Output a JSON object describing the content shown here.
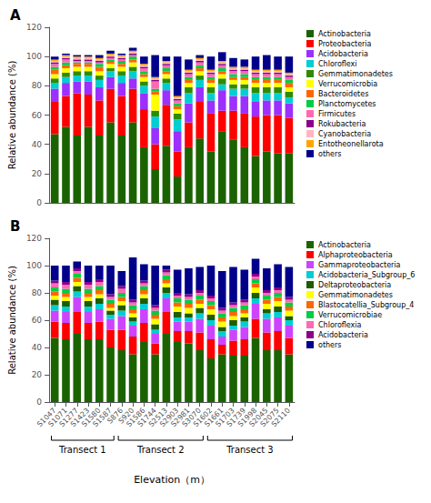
{
  "chart_data": [
    {
      "type": "bar",
      "title": "A",
      "stacked": true,
      "categories": [
        "S1047",
        "S1071",
        "S1277",
        "S1423",
        "S1580",
        "S1587",
        "S876",
        "S920",
        "S1586",
        "S1744",
        "S2513",
        "S2903",
        "S2981",
        "S3070",
        "S1602",
        "S1661",
        "S1703",
        "S1739",
        "S1998",
        "S2045",
        "S2075",
        "S2110"
      ],
      "series": [
        {
          "name": "Actinobacteria",
          "color": "#1a6300",
          "values": [
            47,
            52,
            46,
            52,
            46,
            55,
            46,
            55,
            38,
            23,
            39,
            18,
            38,
            44,
            35,
            49,
            43,
            38,
            32,
            35,
            34,
            34
          ]
        },
        {
          "name": "Proteobacteria",
          "color": "#ff0000",
          "values": [
            22,
            21,
            29,
            22,
            24,
            23,
            27,
            23,
            26,
            17,
            28,
            17,
            17,
            25,
            26,
            14,
            20,
            23,
            27,
            25,
            26,
            24
          ]
        },
        {
          "name": "Acidobacteria",
          "color": "#9b30ff",
          "values": [
            9,
            9,
            8,
            9,
            9,
            8,
            9,
            7,
            11,
            11,
            10,
            14,
            13,
            10,
            9,
            14,
            10,
            12,
            10,
            10,
            10,
            10
          ]
        },
        {
          "name": "Chloroflexi",
          "color": "#00ced1",
          "values": [
            4,
            4,
            4,
            4,
            5,
            4,
            5,
            5,
            5,
            8,
            5,
            8,
            7,
            5,
            5,
            4,
            5,
            5,
            6,
            5,
            5,
            4
          ]
        },
        {
          "name": "Gemmatimonadetes",
          "color": "#2e8b00",
          "values": [
            3,
            3,
            3,
            3,
            3,
            2,
            3,
            3,
            3,
            4,
            3,
            4,
            4,
            3,
            4,
            4,
            3,
            3,
            4,
            4,
            4,
            4
          ]
        },
        {
          "name": "Verrucomicrobia",
          "color": "#ffff00",
          "values": [
            3,
            3,
            3,
            3,
            3,
            3,
            3,
            3,
            3,
            11,
            3,
            3,
            3,
            3,
            3,
            3,
            3,
            3,
            3,
            3,
            3,
            3
          ]
        },
        {
          "name": "Bacteroidetes",
          "color": "#ff6600",
          "values": [
            3,
            2,
            2,
            2,
            3,
            2,
            2,
            2,
            2,
            2,
            2,
            2,
            2,
            2,
            2,
            2,
            2,
            2,
            2,
            2,
            2,
            3
          ]
        },
        {
          "name": "Planctomycetes",
          "color": "#00cc44",
          "values": [
            2,
            2,
            1,
            1,
            2,
            1,
            2,
            2,
            2,
            2,
            2,
            2,
            2,
            2,
            2,
            2,
            2,
            2,
            2,
            2,
            2,
            2
          ]
        },
        {
          "name": "Firmicutes",
          "color": "#ff69b4",
          "values": [
            2,
            2,
            1,
            1,
            1,
            1,
            1,
            1,
            2,
            5,
            2,
            2,
            2,
            2,
            2,
            2,
            2,
            2,
            2,
            2,
            2,
            2
          ]
        },
        {
          "name": "Rokubacteria",
          "color": "#8b008b",
          "values": [
            1,
            1,
            1,
            1,
            1,
            1,
            1,
            1,
            1,
            1,
            1,
            1,
            1,
            1,
            1,
            1,
            1,
            1,
            1,
            1,
            1,
            1
          ]
        },
        {
          "name": "Cyanobacteria",
          "color": "#ffb6c1",
          "values": [
            1,
            1,
            1,
            1,
            1,
            1,
            1,
            1,
            1,
            1,
            1,
            1,
            1,
            1,
            1,
            1,
            1,
            1,
            1,
            1,
            1,
            1
          ]
        },
        {
          "name": "Entotheonellarota",
          "color": "#ffa500",
          "values": [
            1,
            1,
            1,
            1,
            1,
            1,
            1,
            1,
            1,
            1,
            1,
            1,
            1,
            1,
            1,
            1,
            1,
            1,
            1,
            1,
            1,
            1
          ]
        },
        {
          "name": "others",
          "color": "#00008b",
          "values": [
            2,
            1,
            1,
            1,
            2,
            2,
            1,
            2,
            5,
            15,
            3,
            27,
            7,
            2,
            9,
            6,
            6,
            5,
            9,
            10,
            9,
            11
          ]
        }
      ],
      "ylabel": "Relative abundance (%)",
      "ylim": [
        0,
        120
      ],
      "yticks": [
        0,
        20,
        40,
        60,
        80,
        100,
        120
      ],
      "grid": false,
      "legend": "right",
      "tick_labels": "y"
    },
    {
      "type": "bar",
      "title": "B",
      "stacked": true,
      "categories": [
        "S1047",
        "S1071",
        "S1277",
        "S1423",
        "S1580",
        "S1587",
        "S876",
        "S920",
        "S1586",
        "S1744",
        "S2513",
        "S2903",
        "S2981",
        "S3070",
        "S1602",
        "S1661",
        "S1703",
        "S1739",
        "S1998",
        "S2045",
        "S2075",
        "S2110"
      ],
      "series": [
        {
          "name": "Actinobacteria",
          "color": "#1a6300",
          "values": [
            47,
            46,
            50,
            46,
            46,
            40,
            38,
            35,
            44,
            35,
            50,
            44,
            43,
            38,
            32,
            35,
            34,
            34,
            47,
            38,
            38,
            35
          ]
        },
        {
          "name": "Alphaproteobacteria",
          "color": "#ff0000",
          "values": [
            12,
            12,
            16,
            12,
            13,
            13,
            15,
            13,
            14,
            8,
            16,
            8,
            9,
            13,
            14,
            7,
            11,
            12,
            14,
            13,
            14,
            12
          ]
        },
        {
          "name": "Gammaproteobacteria",
          "color": "#cc44ff",
          "values": [
            8,
            8,
            11,
            8,
            9,
            8,
            10,
            8,
            10,
            7,
            10,
            7,
            7,
            10,
            10,
            6,
            8,
            9,
            11,
            10,
            10,
            9
          ]
        },
        {
          "name": "Acidobacteria_Subgroup_6",
          "color": "#00ced1",
          "values": [
            4,
            4,
            4,
            4,
            4,
            3,
            4,
            3,
            4,
            3,
            4,
            3,
            3,
            4,
            4,
            4,
            3,
            4,
            4,
            4,
            4,
            4
          ]
        },
        {
          "name": "Deltaproteobacteria",
          "color": "#1e5c00",
          "values": [
            4,
            4,
            4,
            4,
            4,
            3,
            4,
            3,
            4,
            4,
            4,
            4,
            3,
            4,
            4,
            3,
            4,
            3,
            4,
            3,
            4,
            3
          ]
        },
        {
          "name": "Gemmatimonadetes",
          "color": "#ffff00",
          "values": [
            3,
            3,
            3,
            3,
            3,
            2,
            3,
            3,
            3,
            4,
            3,
            4,
            4,
            3,
            4,
            4,
            3,
            3,
            4,
            4,
            4,
            4
          ]
        },
        {
          "name": "Blastocatellia_Subgroup_4",
          "color": "#ff6600",
          "values": [
            3,
            3,
            3,
            3,
            3,
            3,
            3,
            3,
            3,
            3,
            3,
            3,
            3,
            3,
            3,
            3,
            3,
            3,
            3,
            3,
            3,
            3
          ]
        },
        {
          "name": "Verrucomicrobiae",
          "color": "#00cc44",
          "values": [
            3,
            3,
            3,
            3,
            3,
            3,
            3,
            3,
            3,
            3,
            3,
            3,
            3,
            3,
            3,
            3,
            3,
            3,
            3,
            3,
            3,
            3
          ]
        },
        {
          "name": "Chloroflexia",
          "color": "#ff69b4",
          "values": [
            3,
            3,
            2,
            3,
            3,
            2,
            3,
            2,
            2,
            2,
            2,
            2,
            2,
            2,
            2,
            2,
            2,
            2,
            2,
            2,
            2,
            2
          ]
        },
        {
          "name": "Acidobacteria",
          "color": "#8b008b",
          "values": [
            2,
            2,
            2,
            2,
            2,
            2,
            2,
            2,
            2,
            2,
            2,
            2,
            2,
            2,
            2,
            2,
            2,
            2,
            2,
            2,
            2,
            2
          ]
        },
        {
          "name": "others",
          "color": "#00008b",
          "values": [
            11,
            12,
            5,
            12,
            10,
            21,
            11,
            31,
            12,
            29,
            3,
            17,
            19,
            17,
            22,
            27,
            26,
            22,
            11,
            16,
            17,
            22
          ]
        }
      ],
      "ylabel": "Relative abundance (%)",
      "xlabel": "Elevation（m）",
      "ylim": [
        0,
        120
      ],
      "yticks": [
        0,
        20,
        40,
        60,
        80,
        100,
        120
      ],
      "grid": false,
      "legend": "right",
      "annotations": [
        {
          "text": "Transect 1",
          "categories": [
            "S1047",
            "S1587"
          ]
        },
        {
          "text": "Transect 2",
          "categories": [
            "S876",
            "S3070"
          ]
        },
        {
          "text": "Transect 3",
          "categories": [
            "S1602",
            "S2110"
          ]
        }
      ]
    }
  ]
}
